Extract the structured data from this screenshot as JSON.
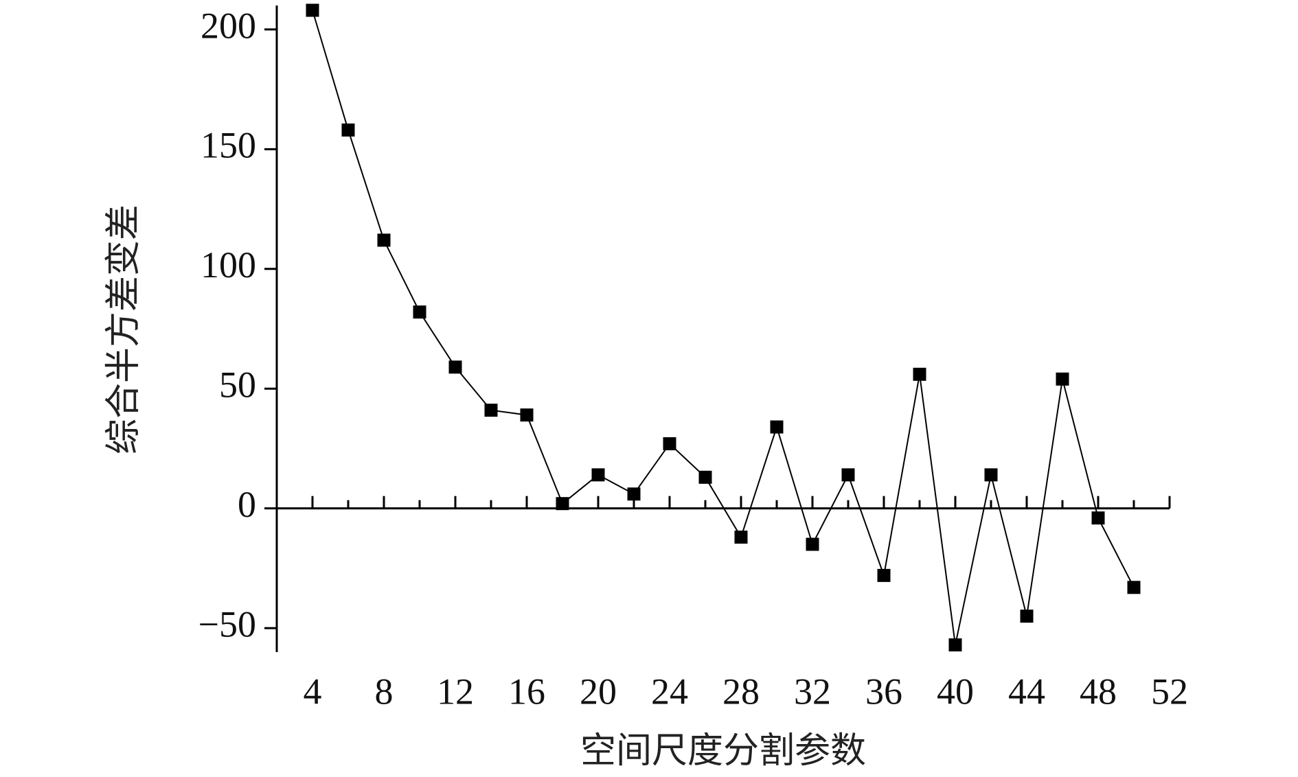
{
  "chart_data": {
    "type": "line",
    "x_label": "空间尺度分割参数",
    "y_label": "综合半方差变差",
    "x": [
      4,
      6,
      8,
      10,
      12,
      14,
      16,
      18,
      20,
      22,
      24,
      26,
      28,
      30,
      32,
      34,
      36,
      38,
      40,
      42,
      44,
      46,
      48,
      50
    ],
    "values": [
      208,
      158,
      112,
      82,
      59,
      41,
      39,
      2,
      14,
      6,
      27,
      13,
      -12,
      34,
      -15,
      14,
      -28,
      56,
      -57,
      14,
      -45,
      54,
      -4,
      -33
    ],
    "color": "#000000",
    "xlim": [
      2,
      52
    ],
    "xticks": [
      4,
      8,
      12,
      16,
      20,
      24,
      28,
      32,
      36,
      40,
      44,
      48,
      52
    ],
    "ylim": [
      -60,
      210
    ],
    "yticks": [
      {
        "value": -50,
        "label": "−50"
      },
      0,
      50,
      100,
      150,
      200
    ],
    "grid": false
  }
}
